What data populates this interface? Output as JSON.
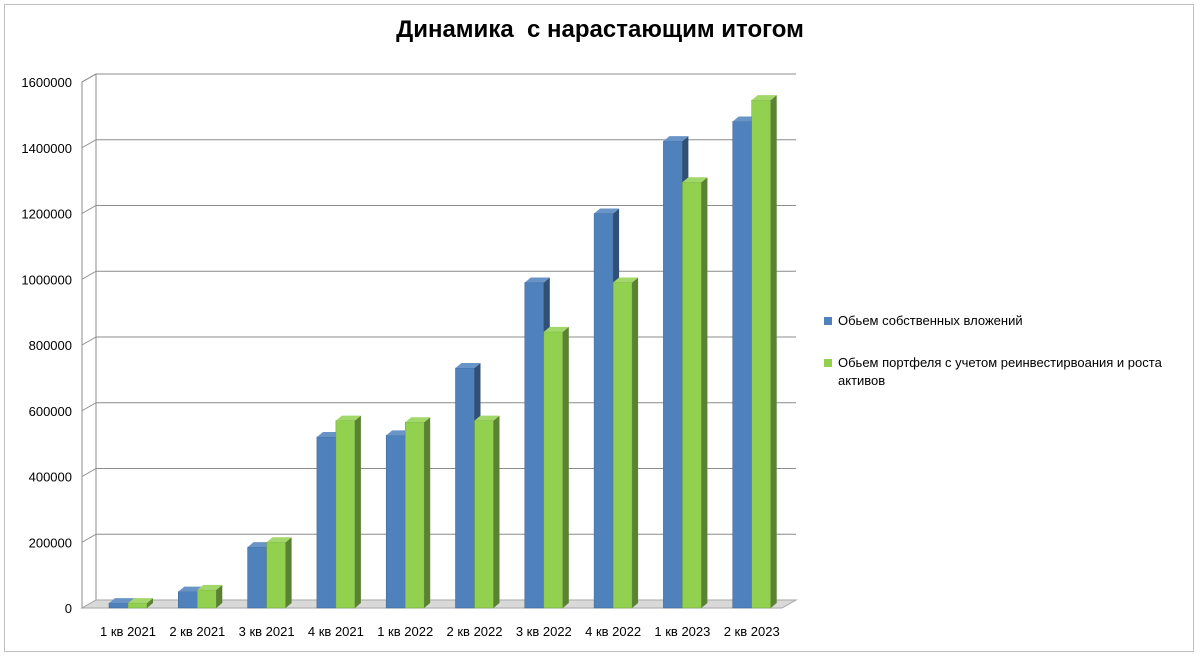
{
  "chart_data": {
    "type": "bar",
    "title": "Динамика  с нарастающим итогом",
    "categories": [
      "1 кв 2021",
      "2 кв 2021",
      "3 кв 2021",
      "4 кв 2021",
      "1 кв 2022",
      "2 кв 2022",
      "3 кв 2022",
      "4 кв 2022",
      "1 кв 2023",
      "2 кв 2023"
    ],
    "series": [
      {
        "name": "Обьем собственных вложений",
        "color": "#4F81BD",
        "values": [
          15000,
          50000,
          185000,
          520000,
          525000,
          730000,
          990000,
          1200000,
          1420000,
          1480000
        ]
      },
      {
        "name": "Обьем портфеля с учетом реинвестирвоания и роста активов",
        "color": "#92D050",
        "values": [
          15000,
          55000,
          200000,
          570000,
          565000,
          570000,
          840000,
          990000,
          1295000,
          1545000
        ]
      }
    ],
    "ylim": [
      0,
      1600000
    ],
    "yticks": [
      "0",
      "200000",
      "400000",
      "600000",
      "800000",
      "1000000",
      "1200000",
      "1400000",
      "1600000"
    ],
    "grid": true,
    "legend_position": "right",
    "xlabel": "",
    "ylabel": ""
  }
}
